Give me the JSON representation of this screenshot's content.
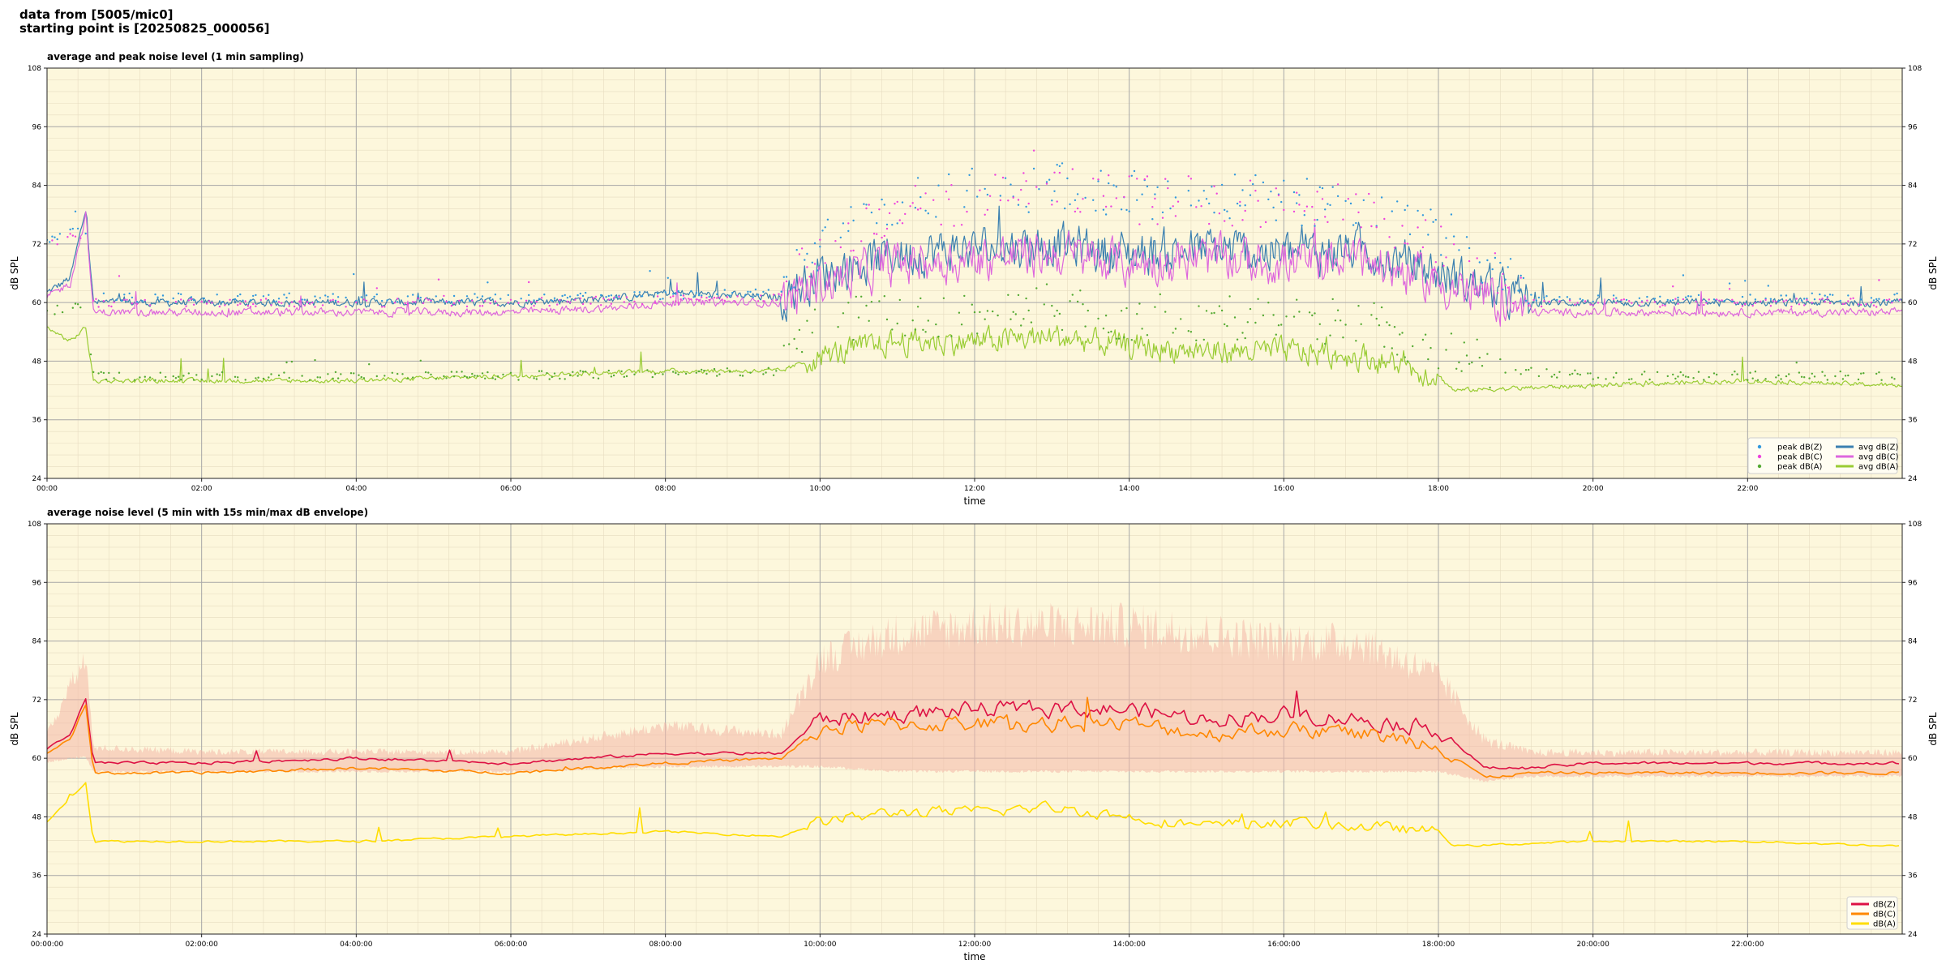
{
  "header": {
    "line1": "data from [5005/mic0]",
    "line2": "starting point is [20250825_000056]"
  },
  "colors": {
    "panel_bg": "#fdf7dc",
    "peak_z": "#3399dd",
    "peak_c": "#ee44dd",
    "peak_a": "#55aa33",
    "avg_z": "#3a7fb0",
    "avg_c": "#dd66dd",
    "avg_a": "#99cc33",
    "db_z": "#dd1144",
    "db_c": "#ff8800",
    "db_a": "#ffdd00",
    "envelope": "#f4b8a8"
  },
  "chart_data": [
    {
      "type": "line",
      "title": "average and peak noise level (1 min sampling)",
      "xlabel": "time",
      "ylabel": "dB SPL",
      "ylim": [
        24,
        108
      ],
      "xlim_hours": [
        0,
        24
      ],
      "y_ticks": [
        "24",
        "36",
        "48",
        "60",
        "72",
        "84",
        "96",
        "108"
      ],
      "x_ticks": [
        "00:00",
        "02:00",
        "04:00",
        "06:00",
        "08:00",
        "10:00",
        "12:00",
        "14:00",
        "16:00",
        "18:00",
        "20:00",
        "22:00"
      ],
      "grid": true,
      "legend": "lower-right",
      "legend_entries": [
        "peak dB(Z)",
        "peak dB(C)",
        "peak dB(A)",
        "avg dB(Z)",
        "avg dB(C)",
        "avg dB(A)"
      ],
      "series": [
        {
          "name": "avg dB(Z)",
          "kind": "line",
          "color": "avg_z",
          "hours": [
            0,
            0.3,
            0.5,
            0.6,
            2,
            4,
            6,
            7.5,
            8,
            9.5,
            10,
            11,
            12,
            13,
            14,
            15,
            16,
            17,
            18,
            19,
            19.2,
            20,
            22,
            24
          ],
          "values": [
            62,
            65,
            79,
            60,
            60,
            60,
            60,
            61,
            62,
            61,
            66,
            70,
            71,
            72,
            70,
            71,
            70,
            71,
            66,
            61,
            60,
            60,
            60,
            60
          ],
          "noise": 7,
          "noise_hours": [
            9.5,
            19.2
          ]
        },
        {
          "name": "avg dB(C)",
          "kind": "line",
          "color": "avg_c",
          "hours": [
            0,
            0.3,
            0.5,
            0.6,
            2,
            4,
            6,
            7.5,
            8,
            9.5,
            10,
            11,
            12,
            13,
            14,
            15,
            16,
            17,
            18,
            19,
            19.2,
            20,
            22,
            24
          ],
          "values": [
            61,
            64,
            78,
            58,
            58,
            58,
            58,
            59,
            60,
            60,
            64,
            68,
            69,
            70,
            68,
            69,
            68,
            69,
            64,
            59,
            58,
            58,
            58,
            58
          ],
          "noise": 7,
          "noise_hours": [
            9.5,
            19.2
          ]
        },
        {
          "name": "avg dB(A)",
          "kind": "line",
          "color": "avg_a",
          "hours": [
            0,
            0.3,
            0.5,
            0.6,
            2,
            4,
            6,
            8,
            9.5,
            10,
            11,
            12,
            13,
            14,
            15,
            16,
            17,
            18,
            18.2,
            20,
            22,
            24
          ],
          "values": [
            55,
            52,
            55,
            44,
            44,
            44,
            45,
            46,
            46,
            49,
            52,
            52,
            53,
            51,
            50,
            50,
            49,
            45,
            42,
            43,
            44,
            43
          ],
          "noise": 4,
          "noise_hours": [
            9.8,
            18
          ]
        },
        {
          "name": "peak dB(Z)",
          "kind": "scatter",
          "color": "peak_z",
          "hours": [
            0,
            0.5,
            0.6,
            2,
            6,
            9.5,
            10,
            11,
            12,
            13,
            14,
            15,
            16,
            17,
            18,
            19,
            19.2,
            20,
            24
          ],
          "values": [
            73,
            75,
            61,
            61,
            61,
            62,
            72,
            80,
            82,
            84,
            82,
            82,
            81,
            80,
            72,
            64,
            61,
            61,
            61
          ],
          "noise": 5,
          "noise_hours": [
            9.5,
            19.2
          ]
        },
        {
          "name": "peak dB(C)",
          "kind": "scatter",
          "color": "peak_c",
          "hours": [
            0,
            0.5,
            0.6,
            2,
            6,
            9.5,
            10,
            11,
            12,
            13,
            14,
            15,
            16,
            17,
            18,
            19,
            19.2,
            20,
            24
          ],
          "values": [
            72,
            74,
            60,
            60,
            60,
            61,
            71,
            79,
            81,
            83,
            81,
            81,
            80,
            79,
            71,
            63,
            60,
            60,
            60
          ],
          "noise": 5,
          "noise_hours": [
            9.5,
            19.2
          ]
        },
        {
          "name": "peak dB(A)",
          "kind": "scatter",
          "color": "peak_a",
          "hours": [
            0,
            0.5,
            0.6,
            2,
            6,
            9.5,
            10,
            11,
            12,
            13,
            14,
            15,
            16,
            17,
            18,
            19,
            20,
            24
          ],
          "values": [
            58,
            60,
            45,
            45,
            45,
            46,
            55,
            58,
            58,
            59,
            57,
            57,
            56,
            56,
            50,
            46,
            45,
            45
          ],
          "noise": 5,
          "noise_hours": [
            9.5,
            19
          ]
        }
      ]
    },
    {
      "type": "line",
      "title": "average noise level (5 min with 15s min/max dB envelope)",
      "xlabel": "time",
      "ylabel": "dB SPL",
      "ylim": [
        24,
        108
      ],
      "xlim_hours": [
        0,
        24
      ],
      "y_ticks": [
        "24",
        "36",
        "48",
        "60",
        "72",
        "84",
        "96",
        "108"
      ],
      "x_ticks": [
        "00:00:00",
        "02:00:00",
        "04:00:00",
        "06:00:00",
        "08:00:00",
        "10:00:00",
        "12:00:00",
        "14:00:00",
        "16:00:00",
        "18:00:00",
        "20:00:00",
        "22:00:00"
      ],
      "grid": true,
      "legend": "lower-right",
      "legend_entries": [
        "dB(Z)",
        "dB(C)",
        "dB(A)"
      ],
      "series": [
        {
          "name": "dB(Z)",
          "kind": "line",
          "color": "db_z",
          "hours": [
            0,
            0.3,
            0.5,
            0.6,
            2,
            4,
            6,
            8,
            9.5,
            10,
            11,
            12,
            13,
            14,
            15,
            16,
            17,
            18,
            18.6,
            19.2,
            20,
            22,
            24
          ],
          "values": [
            62,
            65,
            72,
            59,
            59,
            60,
            59,
            61,
            61,
            68,
            69,
            70,
            70,
            70,
            68,
            69,
            68,
            66,
            58,
            58,
            59,
            59,
            59
          ],
          "noise": 2.6,
          "noise_hours": [
            9.8,
            18.2
          ]
        },
        {
          "name": "dB(C)",
          "kind": "line",
          "color": "db_c",
          "hours": [
            0,
            0.3,
            0.5,
            0.6,
            2,
            4,
            6,
            8,
            9.5,
            10,
            11,
            12,
            13,
            14,
            15,
            16,
            17,
            18,
            18.6,
            19.2,
            20,
            22,
            24
          ],
          "values": [
            61,
            64,
            71,
            57,
            57,
            58,
            57,
            59,
            60,
            66,
            67,
            67,
            67,
            67,
            65,
            66,
            65,
            63,
            56,
            57,
            57,
            57,
            57
          ],
          "noise": 2.6,
          "noise_hours": [
            9.8,
            18.2
          ]
        },
        {
          "name": "dB(A)",
          "kind": "line",
          "color": "db_a",
          "hours": [
            0,
            0.3,
            0.5,
            0.6,
            2,
            4,
            6,
            8,
            9.5,
            10,
            11,
            12,
            13,
            14,
            15,
            16,
            17,
            18,
            18.2,
            20,
            22,
            24
          ],
          "values": [
            47,
            52,
            55,
            43,
            43,
            43,
            44,
            45,
            44,
            47,
            49,
            49,
            50,
            48,
            46,
            47,
            46,
            45,
            42,
            43,
            43,
            42
          ],
          "noise": 1.8,
          "noise_hours": [
            9.8,
            18
          ]
        }
      ],
      "envelope": {
        "color": "envelope",
        "hours": [
          0,
          0.5,
          0.6,
          2,
          6,
          8,
          9.5,
          10,
          11,
          12,
          13,
          14,
          15,
          16,
          17,
          18,
          18.6,
          19.2,
          20,
          24
        ],
        "low": [
          59,
          60,
          57,
          57,
          57,
          58,
          58,
          58,
          57,
          57,
          57,
          57,
          57,
          57,
          57,
          57,
          55,
          56,
          56,
          56
        ],
        "high": [
          66,
          84,
          63,
          62,
          62,
          68,
          66,
          84,
          90,
          92,
          92,
          92,
          90,
          88,
          88,
          80,
          65,
          62,
          62,
          62
        ]
      }
    }
  ]
}
